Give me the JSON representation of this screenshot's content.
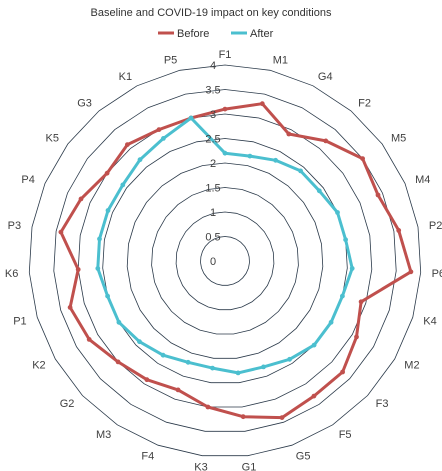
{
  "chart_data": {
    "type": "radar",
    "title": "Baseline and COVID-19 impact on key conditions",
    "categories": [
      "F1",
      "M1",
      "G4",
      "F2",
      "M5",
      "M4",
      "P2",
      "P6",
      "K4",
      "M2",
      "F3",
      "F5",
      "G5",
      "G1",
      "K3",
      "F4",
      "M3",
      "G2",
      "K2",
      "P1",
      "K6",
      "P3",
      "P4",
      "K5",
      "G3",
      "K1",
      "P5"
    ],
    "rlim": [
      0,
      4
    ],
    "r_ticks": [
      "0",
      "0.5",
      "1",
      "1.5",
      "2",
      "2.5",
      "3",
      "3.5",
      "4"
    ],
    "series": [
      {
        "name": "Before",
        "color": "#c0504d",
        "values": [
          3.1,
          3.3,
          2.9,
          3.2,
          3.5,
          3.4,
          3.6,
          3.8,
          2.9,
          3.1,
          3.3,
          3.3,
          3.4,
          3.2,
          3.0,
          2.8,
          2.9,
          3.0,
          3.2,
          3.3,
          3.0,
          3.4,
          3.2,
          3.0,
          3.1,
          3.0,
          3.0
        ]
      },
      {
        "name": "After",
        "color": "#4bbfcf",
        "values": [
          2.2,
          2.2,
          2.3,
          2.4,
          2.4,
          2.5,
          2.5,
          2.6,
          2.5,
          2.5,
          2.5,
          2.4,
          2.3,
          2.3,
          2.2,
          2.2,
          2.3,
          2.4,
          2.5,
          2.5,
          2.6,
          2.6,
          2.6,
          2.6,
          2.7,
          2.8,
          3.0
        ]
      }
    ],
    "grid": true,
    "legend": "top"
  }
}
